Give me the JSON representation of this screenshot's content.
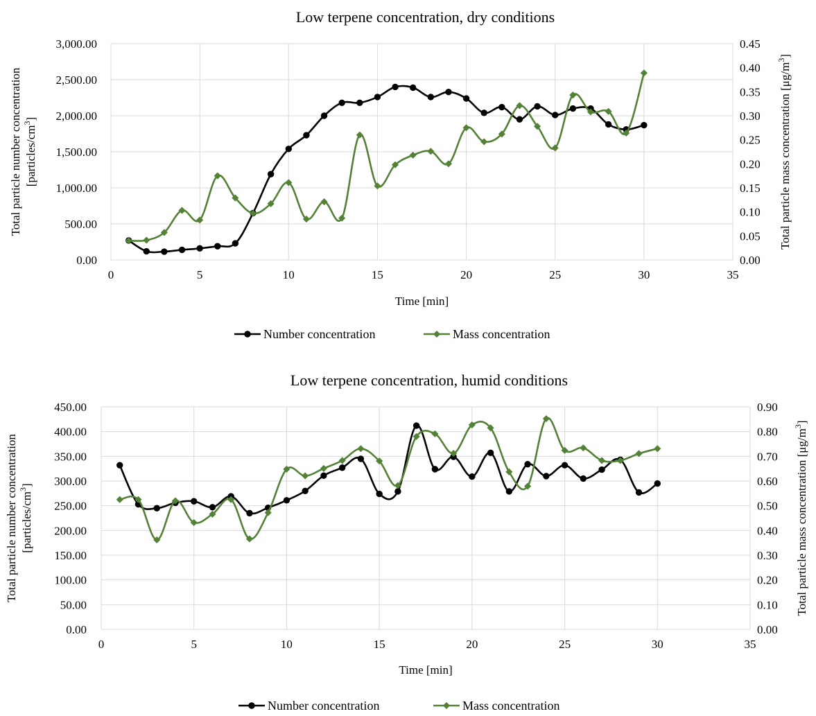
{
  "chart_data": [
    {
      "type": "line",
      "title": "Low terpene concentration, dry conditions",
      "xlabel": "Time [min]",
      "ylabel": [
        "Total particle number concentration",
        "[particles/cm",
        "3",
        "]"
      ],
      "y2label": [
        "Total particle mass concentration [μg/m",
        "3",
        "]"
      ],
      "xlim": [
        0,
        35
      ],
      "ylim": [
        0,
        3000
      ],
      "y2lim": [
        0,
        0.45
      ],
      "xticks": [
        "0",
        "5",
        "10",
        "15",
        "20",
        "25",
        "30",
        "35"
      ],
      "yticks": [
        "0.00",
        "500.00",
        "1,000.00",
        "1,500.00",
        "2,000.00",
        "2,500.00",
        "3,000.00"
      ],
      "y2ticks": [
        "0.00",
        "0.05",
        "0.10",
        "0.15",
        "0.20",
        "0.25",
        "0.30",
        "0.35",
        "0.40",
        "0.45"
      ],
      "grid": true,
      "legend_position": "bottom",
      "series": [
        {
          "name": "Number concentration",
          "axis": "left",
          "color": "#000000",
          "marker": "circle",
          "x": [
            1,
            2,
            3,
            4,
            5,
            6,
            7,
            8,
            9,
            10,
            11,
            12,
            13,
            14,
            15,
            16,
            17,
            18,
            19,
            20,
            21,
            22,
            23,
            24,
            25,
            26,
            27,
            28,
            29,
            30
          ],
          "values": [
            270,
            120,
            115,
            140,
            160,
            190,
            230,
            650,
            1190,
            1540,
            1730,
            2000,
            2180,
            2180,
            2260,
            2400,
            2390,
            2260,
            2330,
            2240,
            2040,
            2120,
            1950,
            2130,
            2010,
            2100,
            2100,
            1880,
            1810,
            1870
          ]
        },
        {
          "name": "Mass concentration",
          "axis": "right",
          "color": "#538135",
          "marker": "diamond",
          "x": [
            1,
            2,
            3,
            4,
            5,
            6,
            7,
            8,
            9,
            10,
            11,
            12,
            13,
            14,
            15,
            16,
            17,
            18,
            19,
            20,
            21,
            22,
            23,
            24,
            25,
            26,
            27,
            28,
            29,
            30
          ],
          "values": [
            0.04,
            0.041,
            0.057,
            0.103,
            0.083,
            0.175,
            0.129,
            0.097,
            0.117,
            0.161,
            0.085,
            0.121,
            0.087,
            0.26,
            0.154,
            0.198,
            0.218,
            0.226,
            0.2,
            0.275,
            0.246,
            0.262,
            0.321,
            0.278,
            0.233,
            0.343,
            0.308,
            0.309,
            0.264,
            0.389
          ]
        }
      ]
    },
    {
      "type": "line",
      "title": "Low terpene concentration, humid conditions",
      "xlabel": "Time [min]",
      "ylabel": [
        "Total particle number concentration",
        "[particles/cm",
        "3",
        "]"
      ],
      "y2label": [
        "Total particle mass concentration [μg/m",
        "3",
        "]"
      ],
      "xlim": [
        0,
        35
      ],
      "ylim": [
        0,
        450
      ],
      "y2lim": [
        0,
        0.9
      ],
      "xticks": [
        "0",
        "5",
        "10",
        "15",
        "20",
        "25",
        "30",
        "35"
      ],
      "yticks": [
        "0.00",
        "50.00",
        "100.00",
        "150.00",
        "200.00",
        "250.00",
        "300.00",
        "350.00",
        "400.00",
        "450.00"
      ],
      "y2ticks": [
        "0.00",
        "0.10",
        "0.20",
        "0.30",
        "0.40",
        "0.50",
        "0.60",
        "0.70",
        "0.80",
        "0.90"
      ],
      "grid": true,
      "legend_position": "bottom",
      "series": [
        {
          "name": "Number concentration",
          "axis": "left",
          "color": "#000000",
          "marker": "circle",
          "x": [
            1,
            2,
            3,
            4,
            5,
            6,
            7,
            8,
            9,
            10,
            11,
            12,
            13,
            14,
            15,
            16,
            17,
            18,
            19,
            20,
            21,
            22,
            23,
            24,
            25,
            26,
            27,
            28,
            29,
            30
          ],
          "values": [
            332,
            253,
            245,
            256,
            259,
            247,
            269,
            235,
            246,
            261,
            280,
            311,
            327,
            345,
            274,
            279,
            412,
            324,
            349,
            309,
            357,
            279,
            334,
            310,
            332,
            305,
            323,
            343,
            277,
            295
          ]
        },
        {
          "name": "Mass concentration",
          "axis": "right",
          "color": "#538135",
          "marker": "diamond",
          "x": [
            1,
            2,
            3,
            4,
            5,
            6,
            7,
            8,
            9,
            10,
            11,
            12,
            13,
            14,
            15,
            16,
            17,
            18,
            19,
            20,
            21,
            22,
            23,
            24,
            25,
            26,
            27,
            28,
            29,
            30
          ],
          "values": [
            0.525,
            0.525,
            0.362,
            0.52,
            0.432,
            0.466,
            0.525,
            0.366,
            0.472,
            0.648,
            0.621,
            0.651,
            0.683,
            0.731,
            0.681,
            0.582,
            0.78,
            0.791,
            0.712,
            0.827,
            0.815,
            0.637,
            0.579,
            0.852,
            0.724,
            0.734,
            0.683,
            0.683,
            0.711,
            0.731
          ]
        }
      ]
    }
  ]
}
